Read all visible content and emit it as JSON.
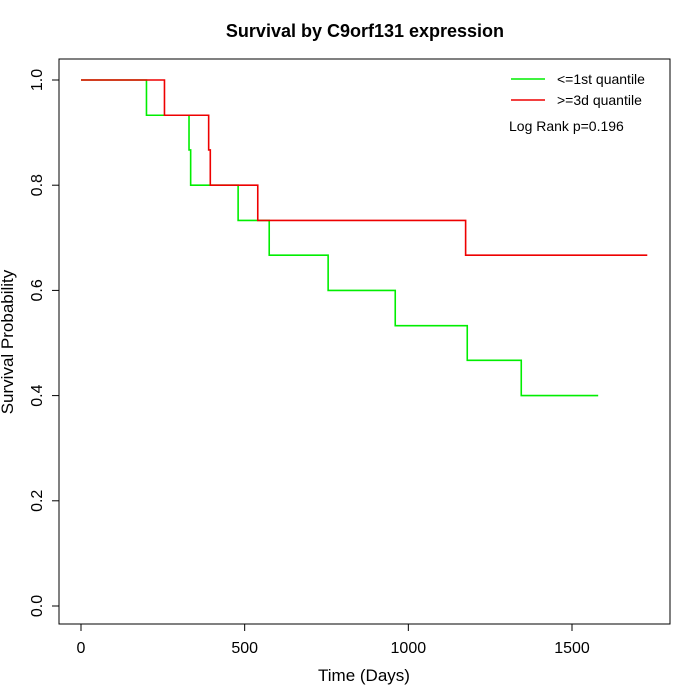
{
  "chart_data": {
    "type": "line",
    "title": "Survival by C9orf131 expression",
    "xlabel": "Time (Days)",
    "ylabel": "Survival Probability",
    "xlim": [
      0,
      1750
    ],
    "ylim": [
      0,
      1.0
    ],
    "x_ticks": [
      0,
      500,
      1000,
      1500
    ],
    "y_ticks": [
      0.0,
      0.2,
      0.4,
      0.6,
      0.8,
      1.0
    ],
    "x_tick_labels": [
      "0",
      "500",
      "1000",
      "1500"
    ],
    "y_tick_labels": [
      "0.0",
      "0.2",
      "0.4",
      "0.6",
      "0.8",
      "1.0"
    ],
    "grid": false,
    "legend_position": "top-right",
    "annotation": "Log Rank p=0.196",
    "series": [
      {
        "name": "<=1st quantile",
        "color": "#00ee00",
        "step": true,
        "x": [
          0,
          200,
          330,
          335,
          480,
          575,
          755,
          960,
          1180,
          1345,
          1580
        ],
        "y": [
          1.0,
          0.933,
          0.867,
          0.8,
          0.733,
          0.667,
          0.6,
          0.533,
          0.467,
          0.4,
          0.4
        ]
      },
      {
        "name": ">=3d quantile",
        "color": "#ee0000",
        "step": true,
        "x": [
          0,
          255,
          390,
          395,
          540,
          1175,
          1730
        ],
        "y": [
          1.0,
          0.933,
          0.867,
          0.8,
          0.733,
          0.667,
          0.667
        ]
      }
    ]
  }
}
